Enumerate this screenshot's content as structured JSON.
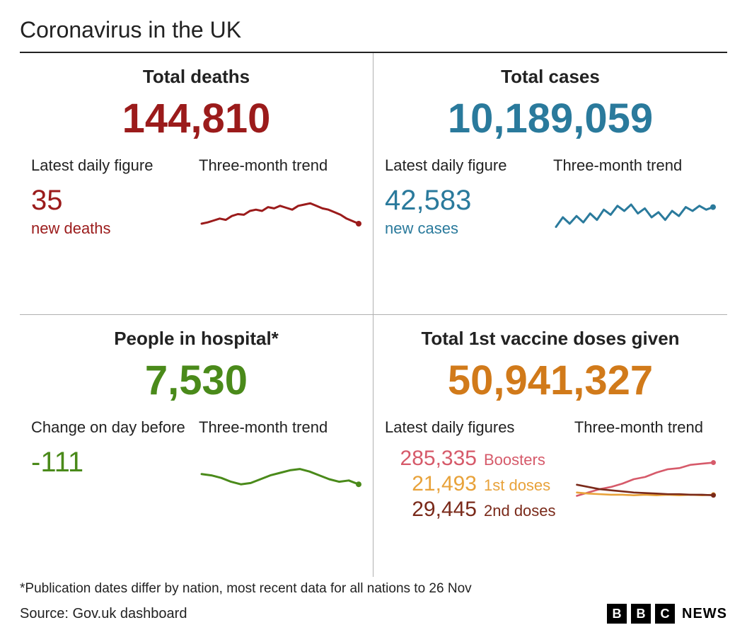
{
  "title": "Coronavirus in the UK",
  "background_color": "#ffffff",
  "text_color": "#222222",
  "divider_color": "#b0b0b0",
  "panels": {
    "deaths": {
      "title": "Total deaths",
      "big_number": "144,810",
      "color": "#9b1b1b",
      "sub_label": "Latest daily figure",
      "sub_number": "35",
      "sub_caption": "new deaths",
      "trend_label": "Three-month trend",
      "sparkline": {
        "stroke": "#9b1b1b",
        "stroke_width": 3,
        "end_dot": true,
        "points": [
          50,
          48,
          45,
          42,
          44,
          38,
          35,
          36,
          30,
          28,
          30,
          24,
          26,
          22,
          25,
          28,
          22,
          20,
          18,
          22,
          26,
          28,
          32,
          36,
          42,
          46,
          50
        ]
      }
    },
    "cases": {
      "title": "Total cases",
      "big_number": "10,189,059",
      "color": "#2a7a9c",
      "sub_label": "Latest daily figure",
      "sub_number": "42,583",
      "sub_caption": "new cases",
      "trend_label": "Three-month trend",
      "sparkline": {
        "stroke": "#2a7a9c",
        "stroke_width": 3,
        "end_dot": true,
        "points": [
          55,
          40,
          50,
          38,
          48,
          34,
          44,
          28,
          36,
          22,
          30,
          20,
          34,
          26,
          40,
          32,
          44,
          30,
          38,
          24,
          30,
          22,
          28,
          24
        ]
      }
    },
    "hospital": {
      "title": "People in hospital*",
      "big_number": "7,530",
      "color": "#4a8a1a",
      "sub_label": "Change on day before",
      "sub_number": "-111",
      "sub_caption": "",
      "trend_label": "Three-month trend",
      "sparkline": {
        "stroke": "#4a8a1a",
        "stroke_width": 3,
        "end_dot": true,
        "points": [
          32,
          34,
          38,
          44,
          48,
          46,
          40,
          34,
          30,
          26,
          24,
          28,
          34,
          40,
          44,
          42,
          48
        ]
      }
    },
    "vaccines": {
      "title": "Total 1st vaccine doses given",
      "big_number": "50,941,327",
      "color": "#d17a1a",
      "sub_label": "Latest daily figures",
      "trend_label": "Three-month trend",
      "rows": [
        {
          "number": "285,335",
          "label": "Boosters",
          "color": "#d65a6a"
        },
        {
          "number": "21,493",
          "label": "1st doses",
          "color": "#e8a23a"
        },
        {
          "number": "29,445",
          "label": "2nd doses",
          "color": "#7a2a1a"
        }
      ],
      "sparklines": [
        {
          "stroke": "#d65a6a",
          "stroke_width": 3,
          "end_dot": true,
          "points": [
            70,
            64,
            58,
            54,
            48,
            40,
            36,
            28,
            22,
            20,
            14,
            12,
            10
          ]
        },
        {
          "stroke": "#e8a23a",
          "stroke_width": 3,
          "end_dot": true,
          "points": [
            64,
            66,
            67,
            68,
            68,
            69,
            68,
            69,
            68,
            69,
            68,
            69,
            68
          ]
        },
        {
          "stroke": "#7a2a1a",
          "stroke_width": 3,
          "end_dot": true,
          "points": [
            50,
            54,
            58,
            60,
            62,
            64,
            65,
            66,
            67,
            67,
            68,
            68,
            69
          ]
        }
      ]
    }
  },
  "footnote": "*Publication dates differ by nation, most recent data for all nations to 26 Nov",
  "source": "Source: Gov.uk dashboard",
  "logo": {
    "letters": [
      "B",
      "B",
      "C"
    ],
    "brand": "NEWS",
    "box_bg": "#000000",
    "box_fg": "#ffffff"
  }
}
